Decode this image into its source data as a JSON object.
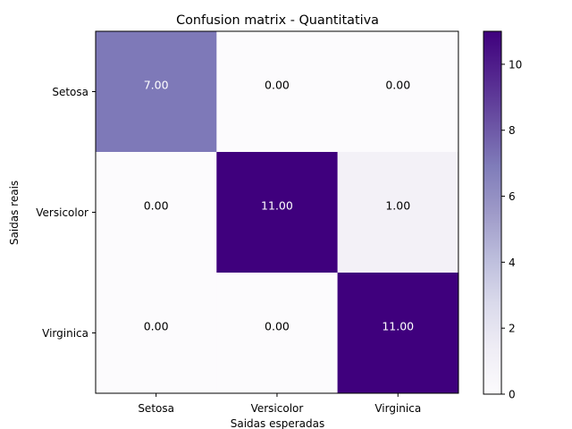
{
  "chart_data": {
    "type": "heatmap",
    "title": "Confusion matrix - Quantitativa",
    "xlabel": "Saidas esperadas",
    "ylabel": "Saidas reais",
    "x_categories": [
      "Setosa",
      "Versicolor",
      "Virginica"
    ],
    "y_categories": [
      "Setosa",
      "Versicolor",
      "Virginica"
    ],
    "values": [
      [
        7,
        0,
        0
      ],
      [
        0,
        11,
        1
      ],
      [
        0,
        0,
        11
      ]
    ],
    "cell_labels": [
      [
        "7.00",
        "0.00",
        "0.00"
      ],
      [
        "0.00",
        "11.00",
        "1.00"
      ],
      [
        "0.00",
        "0.00",
        "11.00"
      ]
    ],
    "colorbar": {
      "range": [
        0,
        11
      ],
      "ticks": [
        0,
        2,
        4,
        6,
        8,
        10
      ],
      "tick_labels": [
        "0",
        "2",
        "4",
        "6",
        "8",
        "10"
      ],
      "colormap": "Purples",
      "colors": [
        "#fcfbfd",
        "#efedf5",
        "#dadaeb",
        "#bcbddc",
        "#9e9ac8",
        "#807dba",
        "#6a51a3",
        "#54278f",
        "#3f007d"
      ]
    },
    "grid": false
  }
}
